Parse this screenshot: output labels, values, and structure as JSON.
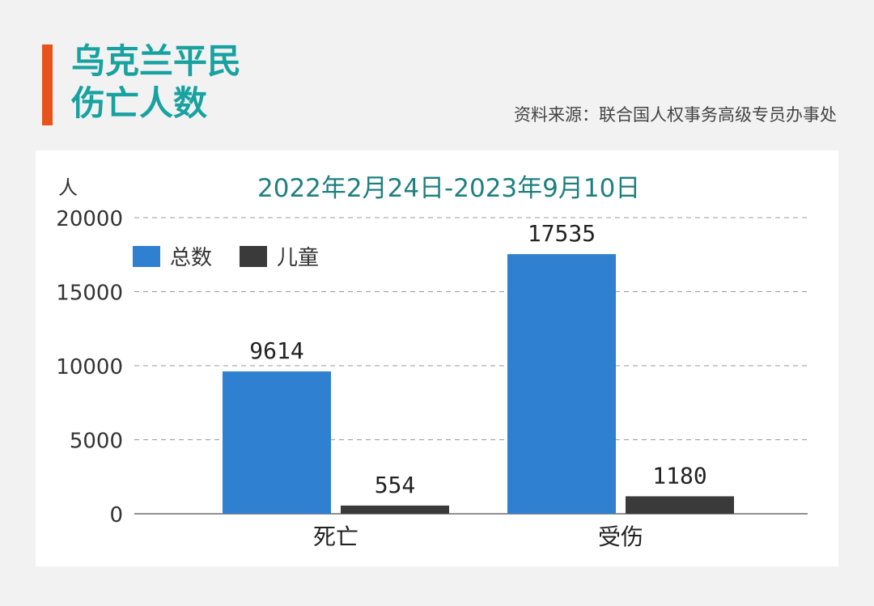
{
  "header": {
    "title_line1": "乌克兰平民",
    "title_line2": "伤亡人数",
    "source": "资料来源：联合国人权事务高级专员办事处"
  },
  "colors": {
    "accent": "#e8531c",
    "title": "#17a2a0",
    "total_series": "#2f80d0",
    "children_series": "#3a3a3a"
  },
  "chart_data": {
    "type": "bar",
    "title": "2022年2月24日-2023年9月10日",
    "ylabel": "人",
    "xlabel": "",
    "categories": [
      "死亡",
      "受伤"
    ],
    "series": [
      {
        "name": "总数",
        "values": [
          9614,
          17535
        ],
        "color": "#2f80d0"
      },
      {
        "name": "儿童",
        "values": [
          554,
          1180
        ],
        "color": "#3a3a3a"
      }
    ],
    "yticks": [
      0,
      5000,
      10000,
      15000,
      20000
    ],
    "ylim": [
      0,
      20000
    ],
    "grid": true,
    "legend_position": "top-left",
    "data_labels": true
  }
}
